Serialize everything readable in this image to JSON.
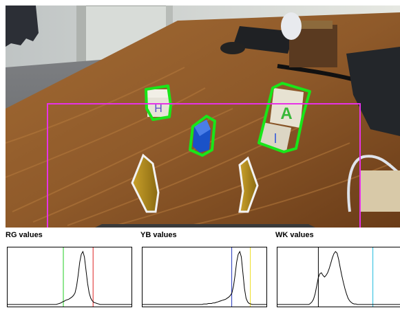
{
  "camera_view": {
    "detections": {
      "outline_color": "#19e619",
      "count": 3
    },
    "roi_color": "#e632e6"
  },
  "histograms": [
    {
      "title": "RG values",
      "markers": [
        {
          "position": 0.45,
          "color": "#22cc22"
        },
        {
          "position": 0.69,
          "color": "#dd2222"
        }
      ],
      "curve": [
        0,
        0,
        0,
        0,
        0,
        0,
        0,
        0,
        0,
        0,
        0,
        0,
        0,
        0,
        0,
        0,
        0,
        0,
        0,
        0,
        0,
        0,
        0,
        0,
        0,
        0,
        0,
        0,
        0,
        0,
        0,
        0,
        0.01,
        0.02,
        0.03,
        0.05,
        0.06,
        0.08,
        0.09,
        0.1,
        0.12,
        0.14,
        0.17,
        0.22,
        0.35,
        0.55,
        0.8,
        0.95,
        1.0,
        0.9,
        0.65,
        0.4,
        0.22,
        0.12,
        0.07,
        0.04,
        0.03,
        0.02,
        0.01,
        0,
        0,
        0,
        0,
        0,
        0,
        0,
        0,
        0,
        0,
        0,
        0,
        0,
        0,
        0,
        0,
        0,
        0,
        0,
        0,
        0
      ]
    },
    {
      "title": "YB values",
      "markers": [
        {
          "position": 0.72,
          "color": "#2233bb"
        },
        {
          "position": 0.87,
          "color": "#eedd22"
        }
      ],
      "curve": [
        0,
        0,
        0,
        0,
        0,
        0,
        0,
        0,
        0,
        0,
        0,
        0,
        0,
        0,
        0,
        0,
        0,
        0,
        0,
        0,
        0,
        0,
        0,
        0,
        0,
        0,
        0,
        0,
        0,
        0,
        0,
        0,
        0,
        0,
        0,
        0,
        0,
        0,
        0,
        0.01,
        0.01,
        0.01,
        0.02,
        0.02,
        0.02,
        0.03,
        0.03,
        0.04,
        0.05,
        0.06,
        0.07,
        0.08,
        0.09,
        0.1,
        0.12,
        0.14,
        0.17,
        0.22,
        0.35,
        0.55,
        0.8,
        0.95,
        1.0,
        0.9,
        0.6,
        0.3,
        0.12,
        0.05,
        0.02,
        0.01,
        0,
        0,
        0,
        0,
        0,
        0,
        0,
        0,
        0,
        0
      ]
    },
    {
      "title": "WK values",
      "markers": [
        {
          "position": 0.33,
          "color": "#000000"
        },
        {
          "position": 0.77,
          "color": "#22bbdd"
        }
      ],
      "curve": [
        0,
        0,
        0,
        0,
        0,
        0,
        0,
        0,
        0,
        0,
        0,
        0,
        0,
        0,
        0,
        0,
        0,
        0,
        0,
        0,
        0,
        0.02,
        0.05,
        0.1,
        0.2,
        0.35,
        0.5,
        0.58,
        0.6,
        0.55,
        0.52,
        0.55,
        0.6,
        0.68,
        0.78,
        0.88,
        0.96,
        1.0,
        0.97,
        0.85,
        0.7,
        0.55,
        0.42,
        0.3,
        0.2,
        0.12,
        0.07,
        0.04,
        0.02,
        0.01,
        0.01,
        0,
        0,
        0,
        0,
        0,
        0,
        0,
        0,
        0,
        0,
        0,
        0,
        0,
        0,
        0,
        0,
        0,
        0,
        0,
        0,
        0,
        0,
        0,
        0,
        0,
        0,
        0,
        0,
        0
      ]
    }
  ]
}
